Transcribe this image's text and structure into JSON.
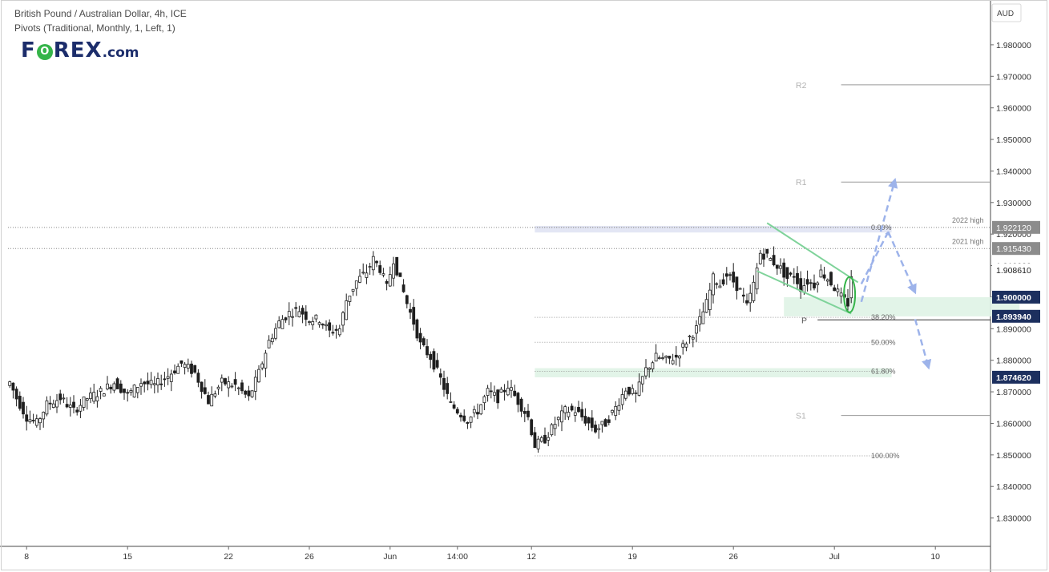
{
  "header": {
    "title": "British Pound / Australian Dollar, 4h, ICE",
    "indicator": "Pivots (Traditional, Monthly, 1, Left, 1)",
    "logo_part1": "F",
    "logo_o": "O",
    "logo_part2": "REX",
    "logo_suffix": ".com",
    "currency": "AUD"
  },
  "colors": {
    "candle": "#1f1f1f",
    "channel": "#7fd39a",
    "zone": "#dff3e6",
    "arrow": "#9db3ea",
    "pivot_line": "#8a8a8a",
    "label_dark": "#1c2f5e",
    "label_gray": "#8c8c8c",
    "ellipse": "#35b449"
  },
  "chart_data": {
    "type": "candlestick",
    "interval": "4h",
    "ylim": [
      1.82,
      1.99
    ],
    "y_ticks": [
      1.83,
      1.84,
      1.85,
      1.86,
      1.87,
      1.88,
      1.89,
      1.9,
      1.91,
      1.92,
      1.93,
      1.94,
      1.95,
      1.96,
      1.97,
      1.98
    ],
    "y_tick_labels": [
      "1.830000",
      "1.840000",
      "1.850000",
      "1.860000",
      "1.870000",
      "1.880000",
      "1.890000",
      "1.900000",
      "1.910000",
      "1.920000",
      "1.930000",
      "1.940000",
      "1.950000",
      "1.960000",
      "1.970000",
      "1.980000"
    ],
    "x_ticks": [
      {
        "label": "8",
        "bar": 5
      },
      {
        "label": "15",
        "bar": 35
      },
      {
        "label": "22",
        "bar": 65
      },
      {
        "label": "26",
        "bar": 89
      },
      {
        "label": "Jun",
        "bar": 113
      },
      {
        "label": "14:00",
        "bar": 133
      },
      {
        "label": "12",
        "bar": 155
      },
      {
        "label": "19",
        "bar": 185
      },
      {
        "label": "26",
        "bar": 215
      },
      {
        "label": "Jul",
        "bar": 245
      },
      {
        "label": "10",
        "bar": 275
      }
    ],
    "anchors": [
      [
        0,
        1.873
      ],
      [
        2,
        1.868
      ],
      [
        5,
        1.862
      ],
      [
        8,
        1.86
      ],
      [
        11,
        1.866
      ],
      [
        15,
        1.868
      ],
      [
        19,
        1.864
      ],
      [
        23,
        1.868
      ],
      [
        27,
        1.87
      ],
      [
        31,
        1.873
      ],
      [
        35,
        1.869
      ],
      [
        39,
        1.873
      ],
      [
        43,
        1.872
      ],
      [
        47,
        1.875
      ],
      [
        51,
        1.879
      ],
      [
        55,
        1.876
      ],
      [
        59,
        1.867
      ],
      [
        63,
        1.873
      ],
      [
        67,
        1.872
      ],
      [
        71,
        1.868
      ],
      [
        74,
        1.876
      ],
      [
        77,
        1.886
      ],
      [
        80,
        1.892
      ],
      [
        83,
        1.895
      ],
      [
        86,
        1.896
      ],
      [
        89,
        1.893
      ],
      [
        92,
        1.893
      ],
      [
        95,
        1.889
      ],
      [
        98,
        1.89
      ],
      [
        100,
        1.899
      ],
      [
        103,
        1.905
      ],
      [
        106,
        1.908
      ],
      [
        108,
        1.912
      ],
      [
        110,
        1.909
      ],
      [
        112,
        1.903
      ],
      [
        114,
        1.912
      ],
      [
        116,
        1.905
      ],
      [
        118,
        1.898
      ],
      [
        120,
        1.892
      ],
      [
        122,
        1.885
      ],
      [
        125,
        1.881
      ],
      [
        128,
        1.874
      ],
      [
        131,
        1.866
      ],
      [
        133,
        1.864
      ],
      [
        136,
        1.861
      ],
      [
        139,
        1.864
      ],
      [
        142,
        1.87
      ],
      [
        145,
        1.868
      ],
      [
        148,
        1.872
      ],
      [
        151,
        1.867
      ],
      [
        154,
        1.862
      ],
      [
        156,
        1.853
      ],
      [
        159,
        1.855
      ],
      [
        162,
        1.86
      ],
      [
        165,
        1.864
      ],
      [
        168,
        1.864
      ],
      [
        171,
        1.861
      ],
      [
        174,
        1.858
      ],
      [
        177,
        1.86
      ],
      [
        180,
        1.865
      ],
      [
        183,
        1.871
      ],
      [
        186,
        1.869
      ],
      [
        189,
        1.877
      ],
      [
        192,
        1.881
      ],
      [
        195,
        1.88
      ],
      [
        198,
        1.881
      ],
      [
        201,
        1.886
      ],
      [
        204,
        1.89
      ],
      [
        207,
        1.898
      ],
      [
        209,
        1.906
      ],
      [
        211,
        1.904
      ],
      [
        213,
        1.907
      ],
      [
        215,
        1.905
      ],
      [
        217,
        1.902
      ],
      [
        219,
        1.897
      ],
      [
        221,
        1.904
      ],
      [
        223,
        1.914
      ],
      [
        225,
        1.913
      ],
      [
        227,
        1.911
      ],
      [
        229,
        1.909
      ],
      [
        231,
        1.906
      ],
      [
        233,
        1.907
      ],
      [
        235,
        1.903
      ],
      [
        237,
        1.905
      ],
      [
        239,
        1.904
      ],
      [
        241,
        1.908
      ],
      [
        243,
        1.906
      ],
      [
        245,
        1.903
      ],
      [
        247,
        1.9
      ],
      [
        249,
        1.898
      ],
      [
        250,
        1.907
      ]
    ],
    "price_labels": [
      {
        "text": "1.922120",
        "value": 1.92212,
        "style": "gray"
      },
      {
        "text": "1.915430",
        "value": 1.91543,
        "style": "gray"
      },
      {
        "text": "1.908610",
        "value": 1.90861,
        "style": "plain"
      },
      {
        "text": "1.900000",
        "value": 1.9,
        "style": "dark"
      },
      {
        "text": "1.893940",
        "value": 1.89394,
        "style": "dark"
      },
      {
        "text": "1.874620",
        "value": 1.87462,
        "style": "dark"
      }
    ],
    "pivots": [
      {
        "name": "R2",
        "value": 1.9673
      },
      {
        "name": "R1",
        "value": 1.9365
      },
      {
        "name": "P",
        "value": 1.8928
      },
      {
        "name": "S1",
        "value": 1.8625
      }
    ],
    "fibonacci": [
      {
        "label": "0.00%",
        "value": 1.92212
      },
      {
        "label": "38.20%",
        "value": 1.8936
      },
      {
        "label": "50.00%",
        "value": 1.8857
      },
      {
        "label": "61.80%",
        "value": 1.8765
      },
      {
        "label": "100.00%",
        "value": 1.8497
      }
    ],
    "annotations": [
      {
        "text": "2022 high",
        "value": 1.9221
      },
      {
        "text": "2021 high",
        "value": 1.9154
      }
    ],
    "zones": [
      {
        "from_bar": 156,
        "to_bar": 262,
        "low": 1.8923,
        "high": 1.9225
      },
      {
        "from_bar": 230,
        "to_bar": 300,
        "low": 1.8939,
        "high": 1.9
      },
      {
        "from_bar": 156,
        "to_bar": 262,
        "low": 1.8746,
        "high": 1.8775
      }
    ],
    "channel": [
      {
        "bar1": 225,
        "price1": 1.9235,
        "bar2": 252,
        "price2": 1.9047
      },
      {
        "bar1": 222,
        "price1": 1.9083,
        "bar2": 250,
        "price2": 1.8948
      }
    ],
    "projection_arrows": [
      {
        "bar1": 253,
        "price1": 1.8985,
        "bar2": 263,
        "price2": 1.9372
      },
      {
        "bar1": 253,
        "price1": 1.9042,
        "bar2": 261,
        "price2": 1.9207
      },
      {
        "bar1": 261,
        "price1": 1.9207,
        "bar2": 269,
        "price2": 1.9015
      },
      {
        "bar1": 269,
        "price1": 1.893,
        "bar2": 273,
        "price2": 1.8776
      }
    ],
    "highlight": {
      "bar": 249.5,
      "low": 1.8952,
      "high": 1.9064
    }
  }
}
